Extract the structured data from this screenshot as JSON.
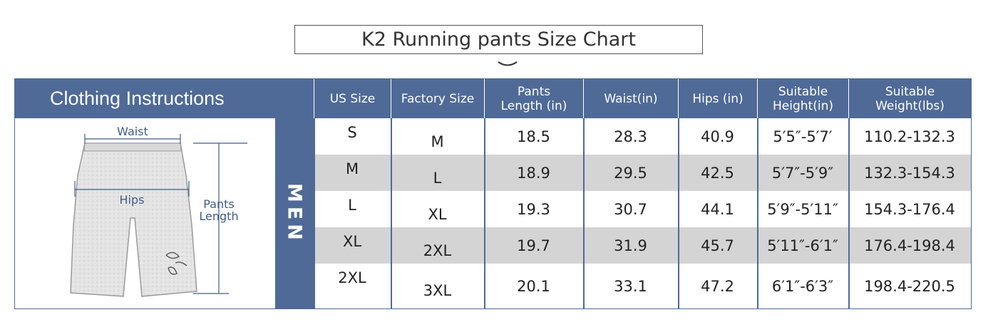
{
  "title": "K2 Running pants Size Chart",
  "header": {
    "instructions": "Clothing Instructions",
    "columns": [
      "US Size",
      "Factory Size",
      "Pants\nLength (in)",
      "Waist(in)",
      "Hips (in)",
      "Suitable\nHeight(in)",
      "Suitable\nWeight(lbs)"
    ]
  },
  "illustration": {
    "waist_label": "Waist",
    "hips_label": "Hips",
    "length_label_1": "Pants",
    "length_label_2": "Length",
    "icon": "shorts-illustration"
  },
  "group_label": "MEN",
  "rows": [
    {
      "us": "S",
      "factory": "M",
      "length": "18.5",
      "waist": "28.3",
      "hips": "40.9",
      "height": "5′5″-5′7′",
      "weight": "110.2-132.3"
    },
    {
      "us": "M",
      "factory": "L",
      "length": "18.9",
      "waist": "29.5",
      "hips": "42.5",
      "height": "5′7″-5′9″",
      "weight": "132.3-154.3"
    },
    {
      "us": "L",
      "factory": "XL",
      "length": "19.3",
      "waist": "30.7",
      "hips": "44.1",
      "height": "5′9″-5′11″",
      "weight": "154.3-176.4"
    },
    {
      "us": "XL",
      "factory": "2XL",
      "length": "19.7",
      "waist": "31.9",
      "hips": "45.7",
      "height": "5′11″-6′1″",
      "weight": "176.4-198.4"
    },
    {
      "us": "2XL",
      "factory": "3XL",
      "length": "20.1",
      "waist": "33.1",
      "hips": "47.2",
      "height": "6′1″-6′3″",
      "weight": "198.4-220.5"
    }
  ],
  "colors": {
    "accent": "#4f6a97",
    "row_shade": "#d4d4d4",
    "dimension": "#3f5c8a"
  }
}
